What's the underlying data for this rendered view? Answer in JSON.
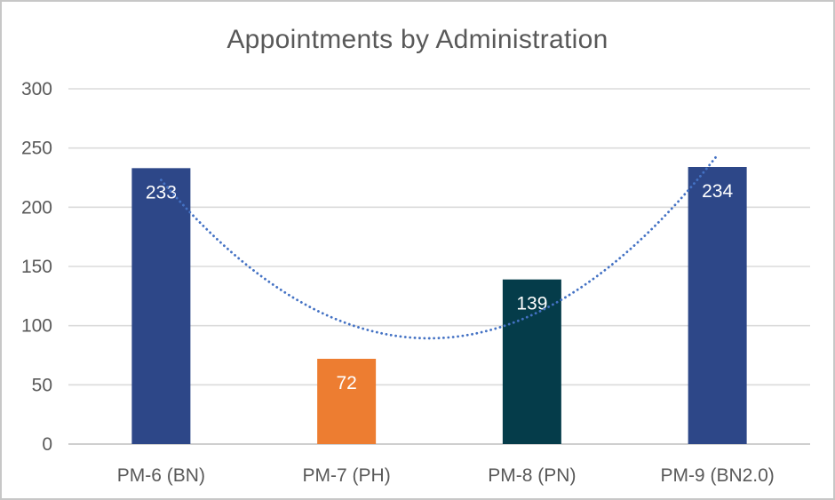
{
  "frame": {
    "background": "#FFFFFF",
    "border_color": "#C7C7C7"
  },
  "chart_data": {
    "type": "bar",
    "title": "Appointments by Administration",
    "categories": [
      "PM-6 (BN)",
      "PM-7 (PH)",
      "PM-8 (PN)",
      "PM-9 (BN2.0)"
    ],
    "values": [
      233,
      72,
      139,
      234
    ],
    "data_labels": [
      "233",
      "72",
      "139",
      "234"
    ],
    "bar_colors": [
      "#2D4788",
      "#ED7D31",
      "#053C4A",
      "#2D4788"
    ],
    "data_label_color": "#FFFFFF",
    "text_color": "#595959",
    "y_ticks": [
      0,
      50,
      100,
      150,
      200,
      250,
      300
    ],
    "ylim": [
      0,
      300
    ],
    "grid": true,
    "gridline_color": "#DBDBDB",
    "axis_line_color": "#CFCFCF",
    "legend": "none",
    "trendline": {
      "type": "polynomial",
      "order": 2,
      "style": "dotted",
      "color": "#4472C4"
    }
  }
}
